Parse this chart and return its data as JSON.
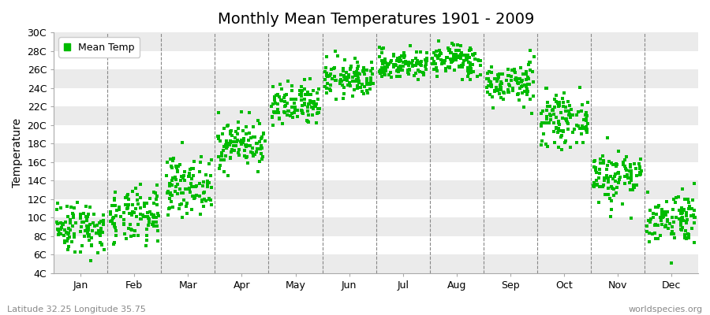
{
  "title": "Monthly Mean Temperatures 1901 - 2009",
  "ylabel": "Temperature",
  "footer_left": "Latitude 32.25 Longitude 35.75",
  "footer_right": "worldspecies.org",
  "dot_color": "#00BB00",
  "background_color": "#FFFFFF",
  "grid_band_color": "#EBEBEB",
  "ylim": [
    4,
    30
  ],
  "yticks": [
    4,
    6,
    8,
    10,
    12,
    14,
    16,
    18,
    20,
    22,
    24,
    26,
    28,
    30
  ],
  "ytick_labels": [
    "4C",
    "6C",
    "8C",
    "10C",
    "12C",
    "14C",
    "16C",
    "18C",
    "20C",
    "22C",
    "24C",
    "26C",
    "28C",
    "30C"
  ],
  "month_names": [
    "Jan",
    "Feb",
    "Mar",
    "Apr",
    "May",
    "Jun",
    "Jul",
    "Aug",
    "Sep",
    "Oct",
    "Nov",
    "Dec"
  ],
  "monthly_mean": [
    9.0,
    10.0,
    13.5,
    18.0,
    22.0,
    25.0,
    26.5,
    27.0,
    24.5,
    20.5,
    14.5,
    10.0
  ],
  "monthly_std": [
    1.4,
    1.5,
    1.5,
    1.3,
    1.2,
    1.0,
    0.8,
    0.9,
    1.1,
    1.3,
    1.5,
    1.4
  ],
  "n_years": 109,
  "legend_label": "Mean Temp",
  "marker": "s",
  "marker_size": 2.2
}
